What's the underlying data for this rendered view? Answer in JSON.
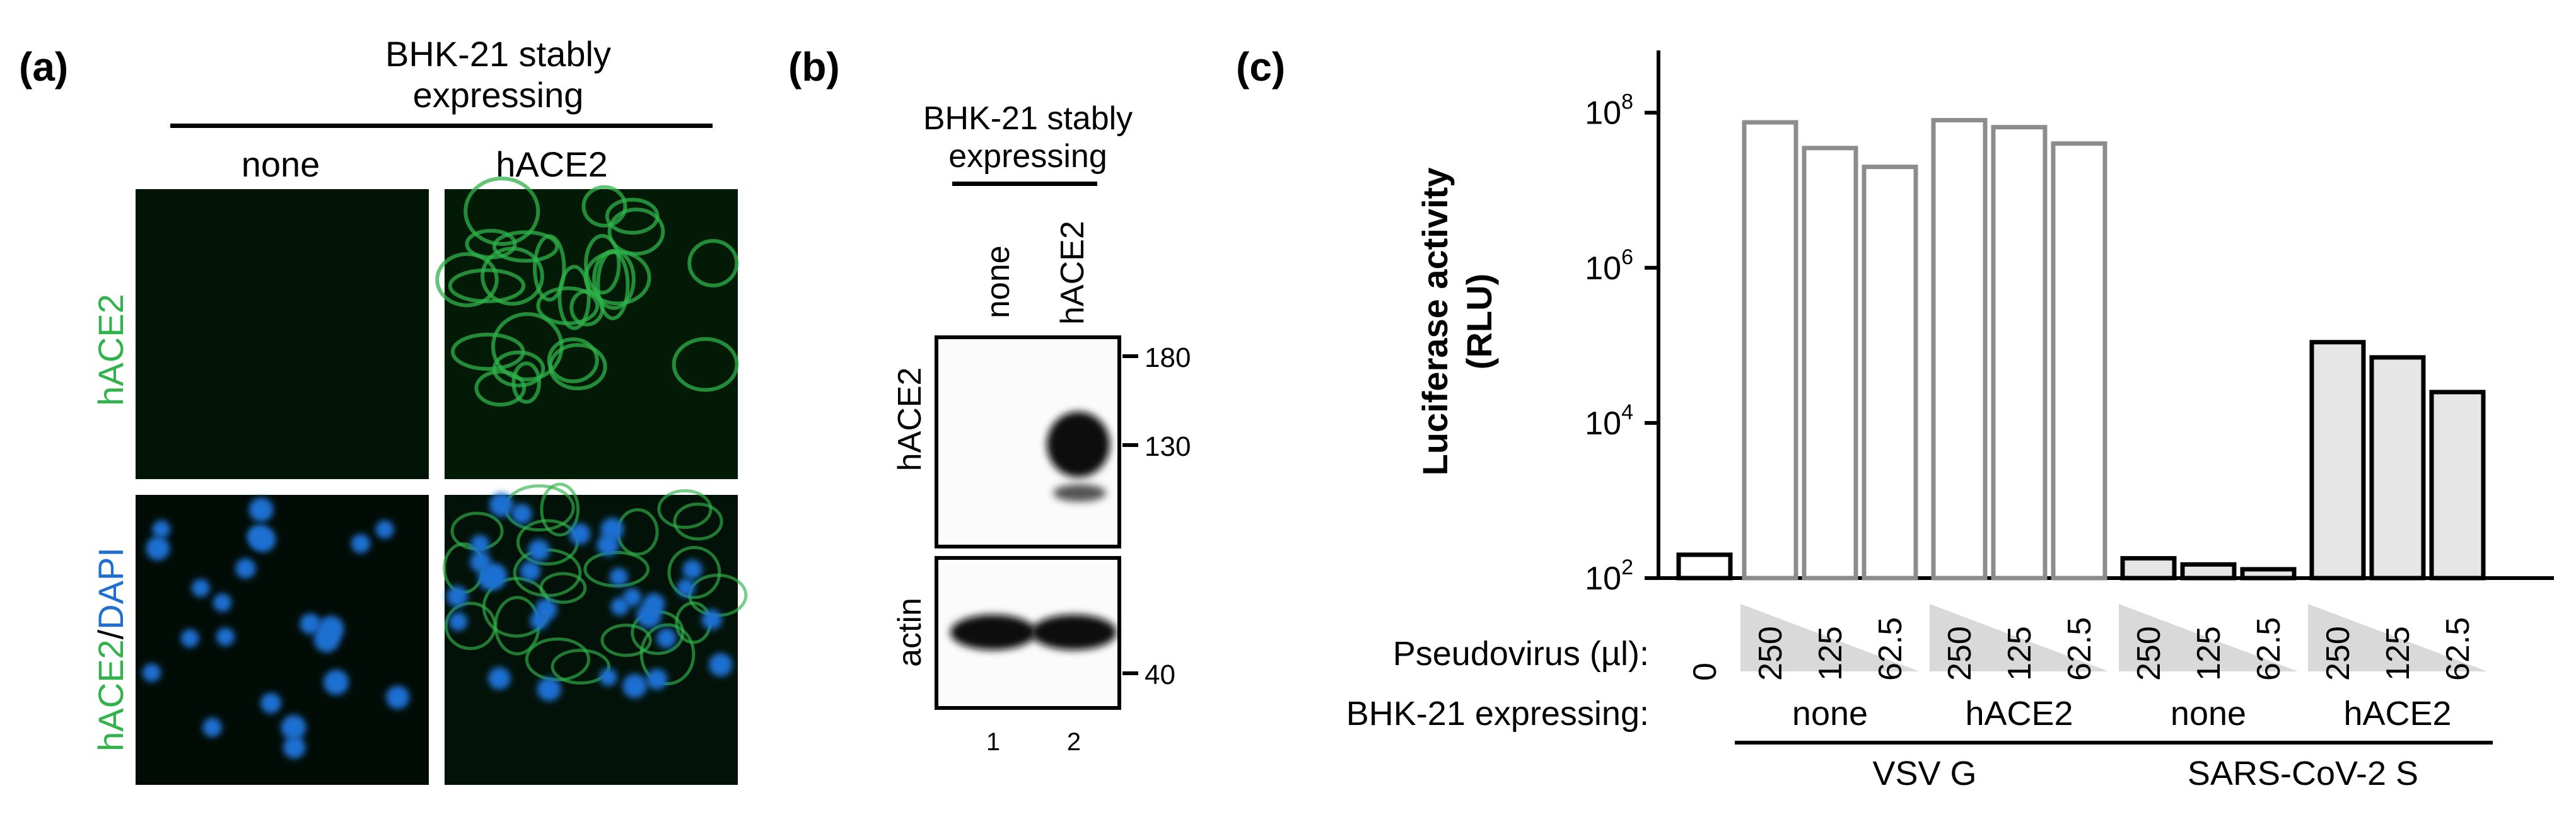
{
  "panel_a": {
    "label": "(a)",
    "title_line1": "BHK-21 stably",
    "title_line2": "expressing",
    "col_labels": [
      "none",
      "hACE2"
    ],
    "row1_label": "hACE2",
    "row2_label_part1": "hACE2",
    "row2_label_sep": "/",
    "row2_label_part2": "DAPI",
    "colors": {
      "green": "#2fb34a",
      "blue": "#1f6fd1",
      "image_bg": "#020f05"
    }
  },
  "panel_b": {
    "label": "(b)",
    "title_line1": "BHK-21 stably",
    "title_line2": "expressing",
    "lane_labels": [
      "none",
      "hACE2"
    ],
    "lane_numbers": [
      "1",
      "2"
    ],
    "blot_labels": [
      "hACE2",
      "actin"
    ],
    "mw_markers": [
      "180",
      "130",
      "40"
    ]
  },
  "panel_c": {
    "label": "(c)",
    "ylabel_line1": "Luciferase activity",
    "ylabel_line2": "(RLU)",
    "pseudovirus_label": "Pseudovirus (µl):",
    "expressing_label": "BHK-21 expressing:",
    "cell_groups": [
      "none",
      "hACE2",
      "none",
      "hACE2"
    ],
    "virus_groups": [
      "VSV G",
      "SARS-CoV-2 S"
    ],
    "colors": {
      "vsv_edge": "#8c8c8c",
      "sars_fill": "#e6e6e6",
      "axis": "#000000"
    }
  },
  "chart_data": {
    "type": "bar",
    "yscale": "log",
    "ylim": [
      100,
      300000000
    ],
    "yticks": [
      100,
      10000,
      1000000,
      100000000
    ],
    "ylabel": "Luciferase activity (RLU)",
    "categories": [
      "0",
      "250",
      "125",
      "62.5",
      "250",
      "125",
      "62.5",
      "250",
      "125",
      "62.5",
      "250",
      "125",
      "62.5"
    ],
    "values": [
      200,
      75000000,
      35000000,
      20000000,
      80000000,
      65000000,
      40000000,
      180,
      150,
      130,
      110000,
      70000,
      25000
    ],
    "groups": [
      {
        "virus": "none",
        "cells": "none"
      },
      {
        "virus": "VSV G",
        "cells": "none"
      },
      {
        "virus": "VSV G",
        "cells": "none"
      },
      {
        "virus": "VSV G",
        "cells": "none"
      },
      {
        "virus": "VSV G",
        "cells": "hACE2"
      },
      {
        "virus": "VSV G",
        "cells": "hACE2"
      },
      {
        "virus": "VSV G",
        "cells": "hACE2"
      },
      {
        "virus": "SARS-CoV-2 S",
        "cells": "none"
      },
      {
        "virus": "SARS-CoV-2 S",
        "cells": "none"
      },
      {
        "virus": "SARS-CoV-2 S",
        "cells": "none"
      },
      {
        "virus": "SARS-CoV-2 S",
        "cells": "hACE2"
      },
      {
        "virus": "SARS-CoV-2 S",
        "cells": "hACE2"
      },
      {
        "virus": "SARS-CoV-2 S",
        "cells": "hACE2"
      }
    ]
  }
}
